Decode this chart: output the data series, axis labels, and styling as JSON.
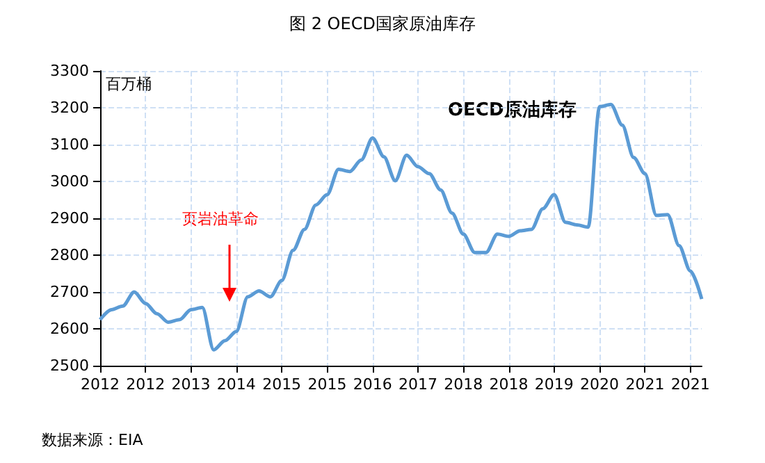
{
  "chart_data": {
    "type": "line",
    "title": "图 2 OECD国家原油库存",
    "ylabel": "百万桶",
    "categories": [
      "2012",
      null,
      null,
      null,
      "2012",
      null,
      null,
      null,
      "2013",
      null,
      null,
      null,
      "2014",
      null,
      null,
      null,
      "2015",
      null,
      null,
      null,
      "2015",
      null,
      null,
      null,
      "2016",
      null,
      null,
      null,
      "2017",
      null,
      null,
      null,
      "2018",
      null,
      null,
      null,
      "2018",
      null,
      null,
      null,
      "2019",
      null,
      null,
      null,
      "2020",
      null,
      null,
      null,
      "2021",
      null,
      null,
      null,
      "2021",
      null
    ],
    "series": [
      {
        "name": "OECD原油库存",
        "color": "#5b9bd5",
        "values": [
          2625,
          2652,
          2662,
          2700,
          2669,
          2641,
          2618,
          2625,
          2652,
          2658,
          2543,
          2568,
          2593,
          2687,
          2703,
          2687,
          2731,
          2813,
          2870,
          2936,
          2964,
          3033,
          3027,
          3058,
          3118,
          3067,
          3002,
          3071,
          3040,
          3021,
          2977,
          2914,
          2857,
          2807,
          2807,
          2857,
          2851,
          2866,
          2870,
          2926,
          2964,
          2889,
          2882,
          2876,
          3203,
          3209,
          3153,
          3065,
          3021,
          2908,
          2910,
          2826,
          2757,
          2681
        ]
      }
    ],
    "ylim": [
      2500,
      3300
    ],
    "yticks": [
      2500,
      2600,
      2700,
      2800,
      2900,
      3000,
      3100,
      3200,
      3300
    ],
    "grid": true,
    "legend": false,
    "marker": "none",
    "line_style": "solid",
    "annotations": [
      "页岩油革命",
      "数据来源：EIA"
    ]
  }
}
